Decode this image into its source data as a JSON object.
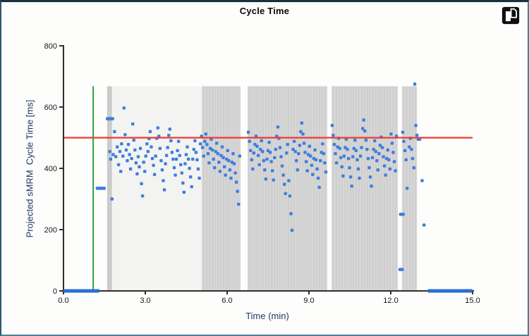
{
  "window": {
    "title": "Cycle Time",
    "toolbar": {
      "icon": "detach-pane-icon"
    }
  },
  "colors": {
    "point_blue": "#3e7edd",
    "red_line": "#ef3b32",
    "green_line": "#2f9e41",
    "band_stripe_a": "#d7d7d7",
    "band_stripe_b": "#cfcfcf",
    "band_light": "#f3f3f1",
    "band_narrow": "#cbcbcb",
    "axis": "#2e2e2e",
    "axis_title": "#1f3864",
    "tick_text": "#161616"
  },
  "chart_data": {
    "type": "scatter",
    "title": "Cycle Time",
    "xlabel": "Time (min)",
    "ylabel": "Projected sMRM  Cycle Time [ms]",
    "xlim": [
      0,
      15
    ],
    "ylim": [
      0,
      800
    ],
    "xticks": [
      "0.0",
      "3.0",
      "6.0",
      "9.0",
      "12.0",
      "15.0"
    ],
    "xtick_values": [
      0,
      3,
      6,
      9,
      12,
      15
    ],
    "yticks": [
      "0",
      "200",
      "400",
      "600",
      "800"
    ],
    "ytick_values": [
      0,
      200,
      400,
      600,
      800
    ],
    "grid": false,
    "legend": "none",
    "reference_lines": {
      "red_hline_y": 500,
      "green_vline_x": 1.09,
      "green_vline_ymax": 668
    },
    "shaded_regions_top_value": 668,
    "shaded_regions": [
      {
        "x1": 1.6,
        "x2": 1.78,
        "shade": "narrow"
      },
      {
        "x1": 1.78,
        "x2": 5.07,
        "shade": "light"
      },
      {
        "x1": 5.07,
        "x2": 6.49,
        "shade": "medium"
      },
      {
        "x1": 6.75,
        "x2": 9.67,
        "shade": "medium"
      },
      {
        "x1": 9.83,
        "x2": 12.26,
        "shade": "medium"
      },
      {
        "x1": 12.41,
        "x2": 12.96,
        "shade": "medium"
      }
    ],
    "baseline_segments": [
      [
        0,
        1.32,
        0
      ],
      [
        13.36,
        15.0,
        0
      ]
    ],
    "dash_points": [
      [
        1.18,
        1.55,
        335
      ],
      [
        1.55,
        1.86,
        562
      ],
      [
        12.3,
        12.52,
        250
      ],
      [
        12.28,
        12.48,
        70
      ],
      [
        12.95,
        13.12,
        495
      ]
    ],
    "points": [
      [
        1.7,
        455
      ],
      [
        1.73,
        430
      ],
      [
        1.78,
        300
      ],
      [
        1.82,
        445
      ],
      [
        1.87,
        520
      ],
      [
        1.92,
        438
      ],
      [
        1.97,
        470
      ],
      [
        2.02,
        412
      ],
      [
        2.07,
        455
      ],
      [
        2.1,
        390
      ],
      [
        2.13,
        480
      ],
      [
        2.18,
        440
      ],
      [
        2.22,
        597
      ],
      [
        2.26,
        510
      ],
      [
        2.3,
        460
      ],
      [
        2.34,
        425
      ],
      [
        2.38,
        478
      ],
      [
        2.42,
        445
      ],
      [
        2.46,
        398
      ],
      [
        2.5,
        432
      ],
      [
        2.54,
        545
      ],
      [
        2.58,
        492
      ],
      [
        2.62,
        460
      ],
      [
        2.66,
        418
      ],
      [
        2.7,
        382
      ],
      [
        2.74,
        438
      ],
      [
        2.78,
        405
      ],
      [
        2.82,
        465
      ],
      [
        2.86,
        350
      ],
      [
        2.9,
        310
      ],
      [
        2.94,
        420
      ],
      [
        2.98,
        390
      ],
      [
        3.02,
        440
      ],
      [
        3.06,
        480
      ],
      [
        3.1,
        455
      ],
      [
        3.14,
        497
      ],
      [
        3.18,
        520
      ],
      [
        3.22,
        470
      ],
      [
        3.26,
        432
      ],
      [
        3.3,
        410
      ],
      [
        3.34,
        380
      ],
      [
        3.38,
        440
      ],
      [
        3.42,
        498
      ],
      [
        3.46,
        532
      ],
      [
        3.5,
        505
      ],
      [
        3.54,
        465
      ],
      [
        3.58,
        425
      ],
      [
        3.62,
        395
      ],
      [
        3.66,
        360
      ],
      [
        3.7,
        330
      ],
      [
        3.74,
        415
      ],
      [
        3.78,
        442
      ],
      [
        3.82,
        468
      ],
      [
        3.86,
        508
      ],
      [
        3.9,
        528
      ],
      [
        3.94,
        490
      ],
      [
        3.98,
        452
      ],
      [
        4.02,
        430
      ],
      [
        4.06,
        402
      ],
      [
        4.1,
        378
      ],
      [
        4.14,
        430
      ],
      [
        4.18,
        458
      ],
      [
        4.22,
        488
      ],
      [
        4.26,
        442
      ],
      [
        4.3,
        412
      ],
      [
        4.34,
        385
      ],
      [
        4.38,
        352
      ],
      [
        4.42,
        322
      ],
      [
        4.46,
        415
      ],
      [
        4.5,
        445
      ],
      [
        4.54,
        470
      ],
      [
        4.58,
        430
      ],
      [
        4.62,
        400
      ],
      [
        4.66,
        372
      ],
      [
        4.7,
        340
      ],
      [
        4.74,
        430
      ],
      [
        4.78,
        462
      ],
      [
        4.82,
        490
      ],
      [
        4.86,
        452
      ],
      [
        4.9,
        428
      ],
      [
        4.94,
        398
      ],
      [
        4.98,
        368
      ],
      [
        5.02,
        480
      ],
      [
        5.06,
        505
      ],
      [
        5.1,
        468
      ],
      [
        5.14,
        440
      ],
      [
        5.18,
        488
      ],
      [
        5.22,
        512
      ],
      [
        5.26,
        478
      ],
      [
        5.3,
        448
      ],
      [
        5.34,
        418
      ],
      [
        5.38,
        465
      ],
      [
        5.42,
        495
      ],
      [
        5.46,
        460
      ],
      [
        5.5,
        430
      ],
      [
        5.54,
        402
      ],
      [
        5.58,
        455
      ],
      [
        5.62,
        482
      ],
      [
        5.66,
        448
      ],
      [
        5.7,
        420
      ],
      [
        5.74,
        390
      ],
      [
        5.78,
        442
      ],
      [
        5.82,
        470
      ],
      [
        5.86,
        435
      ],
      [
        5.9,
        405
      ],
      [
        5.94,
        378
      ],
      [
        5.98,
        430
      ],
      [
        6.02,
        458
      ],
      [
        6.06,
        425
      ],
      [
        6.1,
        395
      ],
      [
        6.14,
        368
      ],
      [
        6.18,
        420
      ],
      [
        6.22,
        448
      ],
      [
        6.26,
        415
      ],
      [
        6.3,
        385
      ],
      [
        6.34,
        355
      ],
      [
        6.38,
        325
      ],
      [
        6.42,
        283
      ],
      [
        6.46,
        440
      ],
      [
        6.78,
        518
      ],
      [
        6.82,
        488
      ],
      [
        6.86,
        458
      ],
      [
        6.9,
        428
      ],
      [
        6.94,
        398
      ],
      [
        6.98,
        450
      ],
      [
        7.02,
        478
      ],
      [
        7.06,
        505
      ],
      [
        7.1,
        472
      ],
      [
        7.14,
        442
      ],
      [
        7.18,
        412
      ],
      [
        7.22,
        462
      ],
      [
        7.26,
        490
      ],
      [
        7.3,
        455
      ],
      [
        7.34,
        425
      ],
      [
        7.38,
        395
      ],
      [
        7.42,
        365
      ],
      [
        7.46,
        430
      ],
      [
        7.5,
        458
      ],
      [
        7.54,
        485
      ],
      [
        7.58,
        452
      ],
      [
        7.62,
        422
      ],
      [
        7.66,
        392
      ],
      [
        7.7,
        362
      ],
      [
        7.74,
        435
      ],
      [
        7.78,
        462
      ],
      [
        7.82,
        505
      ],
      [
        7.86,
        535
      ],
      [
        7.9,
        498
      ],
      [
        7.94,
        468
      ],
      [
        7.98,
        438
      ],
      [
        8.02,
        408
      ],
      [
        8.06,
        378
      ],
      [
        8.1,
        348
      ],
      [
        8.14,
        318
      ],
      [
        8.18,
        450
      ],
      [
        8.22,
        478
      ],
      [
        8.26,
        360
      ],
      [
        8.3,
        310
      ],
      [
        8.34,
        252
      ],
      [
        8.38,
        198
      ],
      [
        8.42,
        462
      ],
      [
        8.46,
        488
      ],
      [
        8.5,
        455
      ],
      [
        8.54,
        425
      ],
      [
        8.58,
        395
      ],
      [
        8.62,
        448
      ],
      [
        8.66,
        475
      ],
      [
        8.7,
        520
      ],
      [
        8.74,
        548
      ],
      [
        8.78,
        512
      ],
      [
        8.82,
        482
      ],
      [
        8.86,
        452
      ],
      [
        8.9,
        422
      ],
      [
        8.94,
        392
      ],
      [
        8.98,
        445
      ],
      [
        9.02,
        472
      ],
      [
        9.06,
        440
      ],
      [
        9.1,
        410
      ],
      [
        9.14,
        380
      ],
      [
        9.18,
        432
      ],
      [
        9.22,
        460
      ],
      [
        9.26,
        428
      ],
      [
        9.3,
        398
      ],
      [
        9.34,
        368
      ],
      [
        9.38,
        338
      ],
      [
        9.42,
        425
      ],
      [
        9.46,
        452
      ],
      [
        9.5,
        480
      ],
      [
        9.54,
        448
      ],
      [
        9.58,
        418
      ],
      [
        9.62,
        388
      ],
      [
        9.85,
        540
      ],
      [
        9.89,
        508
      ],
      [
        9.93,
        478
      ],
      [
        9.97,
        448
      ],
      [
        10.01,
        418
      ],
      [
        10.05,
        470
      ],
      [
        10.09,
        498
      ],
      [
        10.13,
        465
      ],
      [
        10.17,
        435
      ],
      [
        10.21,
        405
      ],
      [
        10.25,
        375
      ],
      [
        10.29,
        440
      ],
      [
        10.33,
        468
      ],
      [
        10.37,
        495
      ],
      [
        10.41,
        462
      ],
      [
        10.45,
        432
      ],
      [
        10.49,
        402
      ],
      [
        10.53,
        372
      ],
      [
        10.57,
        342
      ],
      [
        10.61,
        438
      ],
      [
        10.65,
        465
      ],
      [
        10.69,
        492
      ],
      [
        10.73,
        458
      ],
      [
        10.77,
        428
      ],
      [
        10.81,
        398
      ],
      [
        10.85,
        368
      ],
      [
        10.89,
        440
      ],
      [
        10.93,
        468
      ],
      [
        10.97,
        530
      ],
      [
        11.01,
        558
      ],
      [
        11.05,
        522
      ],
      [
        11.09,
        492
      ],
      [
        11.13,
        462
      ],
      [
        11.17,
        432
      ],
      [
        11.21,
        402
      ],
      [
        11.25,
        372
      ],
      [
        11.29,
        342
      ],
      [
        11.33,
        435
      ],
      [
        11.37,
        462
      ],
      [
        11.41,
        490
      ],
      [
        11.45,
        455
      ],
      [
        11.49,
        425
      ],
      [
        11.53,
        395
      ],
      [
        11.57,
        448
      ],
      [
        11.61,
        475
      ],
      [
        11.65,
        502
      ],
      [
        11.69,
        468
      ],
      [
        11.73,
        438
      ],
      [
        11.77,
        408
      ],
      [
        11.81,
        378
      ],
      [
        11.85,
        432
      ],
      [
        11.89,
        460
      ],
      [
        11.93,
        428
      ],
      [
        11.97,
        398
      ],
      [
        12.01,
        512
      ],
      [
        12.05,
        482
      ],
      [
        12.09,
        452
      ],
      [
        12.13,
        422
      ],
      [
        12.17,
        392
      ],
      [
        12.21,
        505
      ],
      [
        12.44,
        518
      ],
      [
        12.48,
        488
      ],
      [
        12.52,
        458
      ],
      [
        12.56,
        428
      ],
      [
        12.6,
        335
      ],
      [
        12.68,
        470
      ],
      [
        12.72,
        498
      ],
      [
        12.76,
        462
      ],
      [
        12.8,
        432
      ],
      [
        12.85,
        402
      ],
      [
        12.88,
        675
      ],
      [
        12.92,
        540
      ],
      [
        12.96,
        508
      ],
      [
        13.15,
        360
      ],
      [
        13.22,
        215
      ]
    ]
  }
}
